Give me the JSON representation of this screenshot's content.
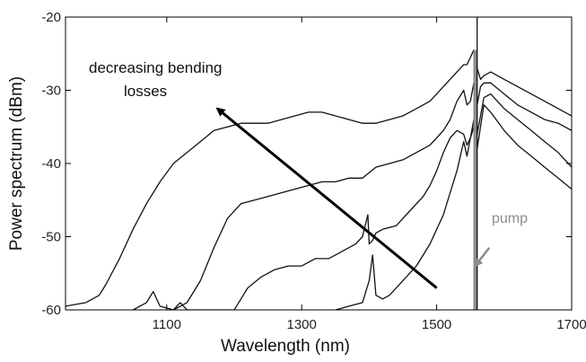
{
  "chart_data": {
    "type": "line",
    "title": "",
    "xlabel": "Wavelength (nm)",
    "ylabel": "Power spectrum (dBm)",
    "xlim": [
      950,
      1700
    ],
    "ylim": [
      -60,
      -20
    ],
    "xticks": [
      1100,
      1300,
      1500,
      1700
    ],
    "xtick_labels": [
      "1100",
      "1300",
      "1500",
      "1700"
    ],
    "yticks": [
      -60,
      -50,
      -40,
      -30,
      -20
    ],
    "ytick_labels": [
      "-60",
      "-50",
      "-40",
      "-30",
      "-20"
    ],
    "grid": false,
    "annotations": {
      "arrow_text_line1": "decreasing bending",
      "arrow_text_line2": "losses",
      "pump_text": "pump"
    },
    "arrow": {
      "from": [
        1500,
        -57
      ],
      "to": [
        1175,
        -32.5
      ]
    },
    "pump_arrow": {
      "from": [
        1578,
        -51.5
      ],
      "to": [
        1557,
        -54
      ]
    },
    "pump_wavelength": 1557,
    "series": [
      {
        "color": "#111111",
        "x": [
          950,
          980,
          1000,
          1010,
          1030,
          1050,
          1070,
          1090,
          1110,
          1130,
          1150,
          1170,
          1190,
          1210,
          1230,
          1250,
          1270,
          1290,
          1310,
          1330,
          1350,
          1370,
          1390,
          1410,
          1430,
          1450,
          1470,
          1490,
          1500,
          1510,
          1520,
          1530,
          1535,
          1540,
          1545,
          1550,
          1555,
          1560,
          1565,
          1570,
          1580,
          1590,
          1600,
          1620,
          1640,
          1660,
          1680,
          1700
        ],
        "y": [
          -59.5,
          -59,
          -58,
          -56.5,
          -53,
          -49,
          -45.5,
          -42.5,
          -40,
          -38.5,
          -37,
          -35.5,
          -35,
          -34.5,
          -34.5,
          -34.5,
          -34,
          -33.5,
          -33,
          -33,
          -33.5,
          -34,
          -34.5,
          -34.5,
          -34,
          -33.5,
          -32.5,
          -31.5,
          -30.5,
          -29.5,
          -28.5,
          -27.5,
          -27,
          -26.5,
          -26.5,
          -25.5,
          -24.5,
          -27,
          -28.5,
          -28,
          -27.5,
          -28,
          -28.5,
          -29.5,
          -30.5,
          -31.5,
          -32.5,
          -33.5
        ]
      },
      {
        "color": "#111111",
        "x": [
          1050,
          1070,
          1080,
          1090,
          1110,
          1130,
          1150,
          1170,
          1190,
          1210,
          1230,
          1250,
          1270,
          1290,
          1310,
          1330,
          1350,
          1370,
          1390,
          1410,
          1430,
          1450,
          1470,
          1490,
          1500,
          1510,
          1520,
          1530,
          1540,
          1545,
          1550,
          1555,
          1560,
          1565,
          1570,
          1580,
          1600,
          1620,
          1640,
          1660,
          1680,
          1700
        ],
        "y": [
          -60,
          -59,
          -57.5,
          -59.5,
          -60,
          -59,
          -56,
          -51.5,
          -47.5,
          -45.5,
          -45,
          -44.5,
          -44,
          -43.5,
          -43,
          -42.5,
          -42.5,
          -42,
          -42,
          -40.5,
          -40,
          -39.5,
          -38.5,
          -37.5,
          -36.5,
          -35.5,
          -34,
          -31.5,
          -30,
          -32,
          -31.5,
          -29,
          -32,
          -29.5,
          -29,
          -29,
          -30.5,
          -32,
          -33,
          -34,
          -34.5,
          -35.5
        ]
      },
      {
        "color": "#111111",
        "x": [
          1110,
          1120,
          1130,
          1200,
          1210,
          1220,
          1240,
          1260,
          1280,
          1300,
          1320,
          1340,
          1360,
          1380,
          1390,
          1398,
          1400,
          1405,
          1410,
          1420,
          1440,
          1460,
          1480,
          1490,
          1500,
          1510,
          1520,
          1530,
          1540,
          1545,
          1550,
          1555,
          1560,
          1570,
          1580,
          1600,
          1620,
          1640,
          1660,
          1680,
          1700
        ],
        "y": [
          -60,
          -59,
          -60,
          -60,
          -58.5,
          -57,
          -55.5,
          -54.5,
          -54,
          -54,
          -53,
          -53,
          -52,
          -51,
          -50,
          -47,
          -51,
          -50.5,
          -49.5,
          -49,
          -48.5,
          -46.5,
          -44.5,
          -43,
          -41,
          -38.5,
          -36.5,
          -35.5,
          -36,
          -37.5,
          -36.5,
          -34,
          -36,
          -31,
          -30.5,
          -32.5,
          -34,
          -35.5,
          -37,
          -38.5,
          -40.5
        ]
      },
      {
        "color": "#111111",
        "x": [
          1350,
          1370,
          1390,
          1400,
          1405,
          1410,
          1420,
          1430,
          1440,
          1450,
          1460,
          1470,
          1480,
          1490,
          1500,
          1510,
          1520,
          1530,
          1540,
          1545,
          1550,
          1555,
          1560,
          1570,
          1580,
          1600,
          1620,
          1640,
          1660,
          1680,
          1700
        ],
        "y": [
          -60,
          -59.5,
          -59,
          -56,
          -52.5,
          -58,
          -58.5,
          -58,
          -57,
          -56,
          -55,
          -54,
          -52.5,
          -51,
          -49,
          -47,
          -44,
          -41,
          -37,
          -39,
          -36.5,
          -35,
          -38,
          -32,
          -33,
          -35.5,
          -37.5,
          -39,
          -40.5,
          -42,
          -43.5
        ]
      },
      {
        "color": "#8c8c8c",
        "x": [
          1557,
          1557
        ],
        "y": [
          -60,
          -24.5
        ]
      },
      {
        "color": "#111111",
        "x": [
          1560,
          1560
        ],
        "y": [
          -60,
          -20
        ]
      }
    ]
  }
}
